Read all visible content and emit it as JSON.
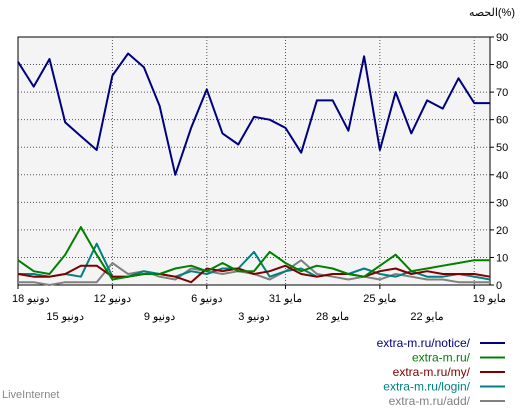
{
  "chart_data": {
    "type": "line",
    "ylabel": "الحصه(%)",
    "ylim": [
      0,
      90
    ],
    "yticks": [
      0,
      10,
      20,
      30,
      40,
      50,
      60,
      70,
      80,
      90
    ],
    "grid": true,
    "legend_position": "bottom-right",
    "x_count": 31,
    "xticks_top": [
      {
        "i": 0,
        "label": "18 دونيو"
      },
      {
        "i": 6,
        "label": "12 دونيو"
      },
      {
        "i": 12,
        "label": "6 دونيو"
      },
      {
        "i": 17,
        "label": "31 مايو"
      },
      {
        "i": 23,
        "label": "25 مايو"
      },
      {
        "i": 29,
        "label": "19 مايو"
      }
    ],
    "xticks_bottom": [
      {
        "i": 3,
        "label": "15 دونيو"
      },
      {
        "i": 9,
        "label": "9 دونيو"
      },
      {
        "i": 15,
        "label": "3 دونيو"
      },
      {
        "i": 20,
        "label": "28 مايو"
      },
      {
        "i": 26,
        "label": "22 مايو"
      }
    ],
    "series": [
      {
        "name": "extra-m.ru/notice/",
        "color": "#000080",
        "values": [
          81,
          72,
          82,
          59,
          54,
          49,
          76,
          84,
          79,
          65,
          40,
          57,
          71,
          55,
          51,
          61,
          60,
          57,
          48,
          67,
          67,
          56,
          83,
          49,
          70,
          55,
          67,
          64,
          75,
          66,
          66
        ]
      },
      {
        "name": "extra-m.ru/",
        "color": "#008000",
        "values": [
          9,
          5,
          4,
          11,
          21,
          11,
          2,
          3,
          4,
          4,
          6,
          7,
          5,
          8,
          5,
          5,
          12,
          8,
          5,
          7,
          6,
          4,
          3,
          7,
          11,
          5,
          6,
          7,
          8,
          9,
          9
        ]
      },
      {
        "name": "extra-m.ru/my/",
        "color": "#800000",
        "values": [
          4,
          3,
          3,
          4,
          7,
          7,
          3,
          3,
          4,
          4,
          3,
          1,
          6,
          5,
          6,
          4,
          5,
          7,
          4,
          3,
          4,
          4,
          3,
          5,
          6,
          4,
          5,
          4,
          4,
          4,
          3
        ]
      },
      {
        "name": "extra-m.ru/login/",
        "color": "#008080",
        "values": [
          4,
          4,
          3,
          4,
          3,
          15,
          3,
          3,
          5,
          4,
          3,
          5,
          4,
          6,
          6,
          12,
          3,
          5,
          6,
          3,
          4,
          4,
          6,
          4,
          3,
          5,
          3,
          3,
          4,
          3,
          2
        ]
      },
      {
        "name": "extra-m.ru/add/",
        "color": "#808080",
        "values": [
          1,
          1,
          0,
          1,
          1,
          1,
          8,
          4,
          5,
          3,
          2,
          6,
          5,
          4,
          5,
          4,
          2,
          5,
          9,
          4,
          3,
          2,
          3,
          2,
          4,
          3,
          2,
          2,
          1,
          1,
          1
        ]
      }
    ]
  },
  "watermark": "LiveInternet"
}
